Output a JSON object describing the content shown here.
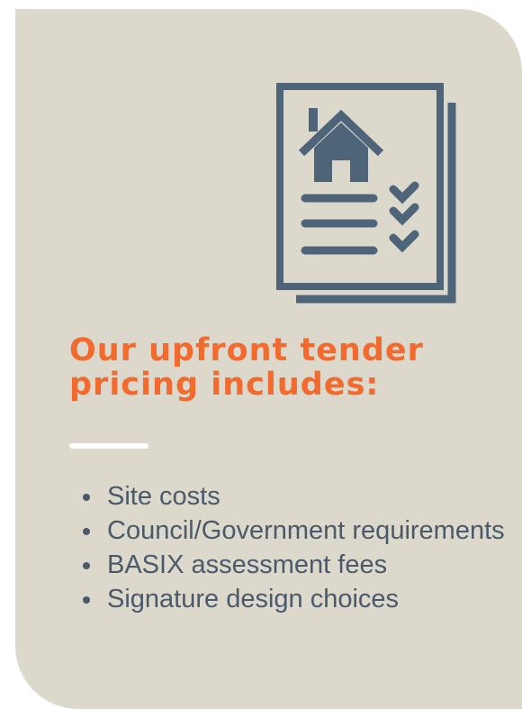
{
  "heading": "Our upfront tender pricing includes:",
  "items": [
    "Site costs",
    "Council/Government requirements",
    "BASIX assessment fees",
    "Signature design choices"
  ]
}
